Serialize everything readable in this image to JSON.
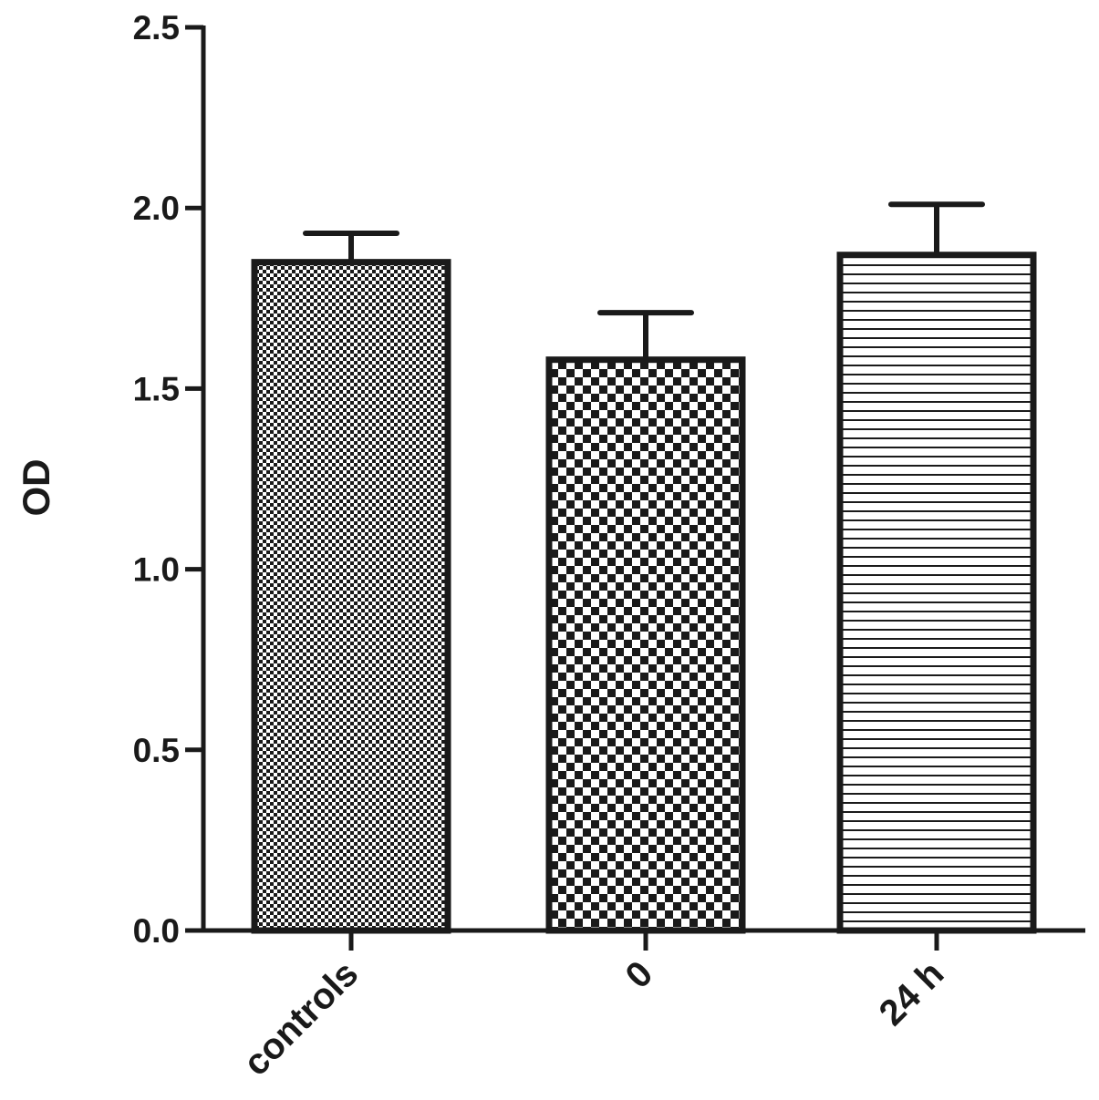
{
  "chart_data": {
    "type": "bar",
    "categories": [
      "controls",
      "0",
      "24 h"
    ],
    "values": [
      1.85,
      1.58,
      1.87
    ],
    "errors": [
      0.08,
      0.13,
      0.14
    ],
    "ylabel": "OD",
    "xlabel": "",
    "ylim": [
      0,
      2.5
    ],
    "yticks": [
      "0.0",
      "0.5",
      "1.0",
      "1.5",
      "2.0",
      "2.5"
    ],
    "ytick_values": [
      0,
      0.5,
      1.0,
      1.5,
      2.0,
      2.5
    ],
    "grid": false,
    "fill_patterns": [
      "fine-checker",
      "coarse-checker",
      "horizontal-lines"
    ],
    "colors": {
      "ink": "#1a1a1a",
      "background": "#ffffff"
    }
  }
}
